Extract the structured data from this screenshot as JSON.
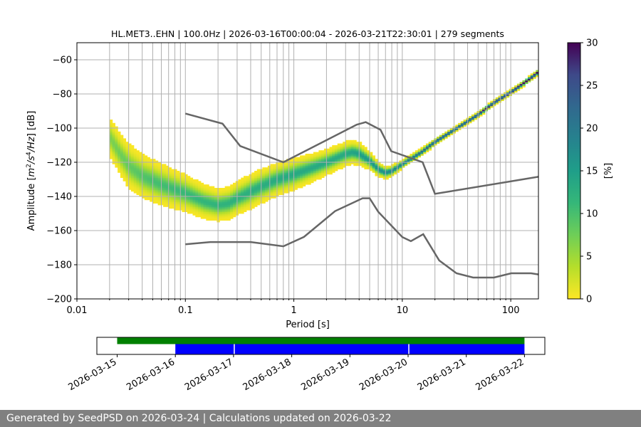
{
  "footer": {
    "text": "Generated by SeedPSD on 2026-03-24 | Calculations updated on 2026-03-22"
  },
  "colors": {
    "nlnm_nhnm": "#666666",
    "grid": "#b0b0b0",
    "timeline_green": "#008000",
    "timeline_blue": "#0000ff",
    "colormap": "viridis_r"
  },
  "chart_data": [
    {
      "type": "heatmap",
      "title": "HL.MET3..EHN | 100.0Hz | 2026-03-16T00:00:04 - 2026-03-21T22:30:01 | 279 segments",
      "xlabel": "Period [s]",
      "ylabel": "Amplitude [m²/s⁴/Hz] [dB]",
      "ylabel_parts": {
        "prefix": "Amplitude [",
        "m": "m",
        "two": "2",
        "s": "/s",
        "four": "4",
        "hz": "/Hz",
        "suffix": "] [dB]"
      },
      "x_scale": "log",
      "xlim": [
        0.01,
        180
      ],
      "ylim": [
        -200,
        -50
      ],
      "x_ticks": [
        0.01,
        0.1,
        1,
        10,
        100
      ],
      "x_tick_labels": [
        "0.01",
        "0.1",
        "1",
        "10",
        "100"
      ],
      "y_ticks": [
        -200,
        -180,
        -160,
        -140,
        -120,
        -100,
        -80,
        -60
      ],
      "y_tick_labels": [
        "−200",
        "−180",
        "−160",
        "−140",
        "−120",
        "−100",
        "−80",
        "−60"
      ],
      "grid": true,
      "colorbar": {
        "label": "[%]",
        "range": [
          0,
          30
        ],
        "ticks": [
          0,
          5,
          10,
          15,
          20,
          25,
          30
        ],
        "tick_labels": [
          "0",
          "5",
          "10",
          "15",
          "20",
          "25",
          "30"
        ]
      },
      "density_model": {
        "mode": [
          [
            0.02,
            -105
          ],
          [
            0.025,
            -115
          ],
          [
            0.03,
            -122
          ],
          [
            0.04,
            -128
          ],
          [
            0.06,
            -133
          ],
          [
            0.1,
            -138
          ],
          [
            0.15,
            -143
          ],
          [
            0.2,
            -145
          ],
          [
            0.25,
            -144
          ],
          [
            0.3,
            -141
          ],
          [
            0.4,
            -137
          ],
          [
            0.5,
            -134
          ],
          [
            0.7,
            -130
          ],
          [
            1.0,
            -127
          ],
          [
            1.5,
            -123
          ],
          [
            2.0,
            -120
          ],
          [
            3.0,
            -115
          ],
          [
            3.5,
            -114
          ],
          [
            4.0,
            -115
          ],
          [
            5.0,
            -119
          ],
          [
            6.0,
            -124
          ],
          [
            7.0,
            -126
          ],
          [
            8.0,
            -125
          ],
          [
            10.0,
            -121
          ],
          [
            15.0,
            -114
          ],
          [
            20.0,
            -108
          ],
          [
            30.0,
            -101
          ],
          [
            50.0,
            -92
          ],
          [
            70.0,
            -85
          ],
          [
            100.0,
            -79
          ],
          [
            150.0,
            -71
          ],
          [
            180.0,
            -67
          ]
        ],
        "spread": [
          [
            0.02,
            14
          ],
          [
            0.03,
            16
          ],
          [
            0.05,
            15
          ],
          [
            0.1,
            13
          ],
          [
            0.2,
            11
          ],
          [
            0.4,
            12
          ],
          [
            1.0,
            11
          ],
          [
            2.0,
            9
          ],
          [
            4.0,
            8
          ],
          [
            6.0,
            5
          ],
          [
            10.0,
            3
          ],
          [
            30.0,
            2
          ],
          [
            180.0,
            2
          ]
        ],
        "peak": [
          [
            0.02,
            6
          ],
          [
            0.05,
            9
          ],
          [
            0.1,
            10
          ],
          [
            0.3,
            11
          ],
          [
            1.0,
            12
          ],
          [
            3.0,
            12
          ],
          [
            6.0,
            15
          ],
          [
            10.0,
            18
          ],
          [
            20.0,
            23
          ],
          [
            50.0,
            27
          ],
          [
            180.0,
            30
          ]
        ]
      },
      "nhnm": [
        [
          0.1,
          -91.5
        ],
        [
          0.22,
          -97.4
        ],
        [
          0.32,
          -110.5
        ],
        [
          0.8,
          -120.0
        ],
        [
          3.8,
          -98.0
        ],
        [
          4.6,
          -96.5
        ],
        [
          6.3,
          -101.0
        ],
        [
          7.9,
          -113.5
        ],
        [
          15.4,
          -120.0
        ],
        [
          20.0,
          -138.5
        ],
        [
          180.0,
          -128.5
        ]
      ],
      "nlnm": [
        [
          0.1,
          -168.0
        ],
        [
          0.17,
          -166.7
        ],
        [
          0.4,
          -166.7
        ],
        [
          0.8,
          -169.2
        ],
        [
          1.24,
          -163.7
        ],
        [
          2.4,
          -148.6
        ],
        [
          4.3,
          -141.1
        ],
        [
          5.0,
          -141.1
        ],
        [
          6.0,
          -149.0
        ],
        [
          10.0,
          -163.8
        ],
        [
          12.0,
          -166.2
        ],
        [
          15.6,
          -162.1
        ],
        [
          21.9,
          -177.5
        ],
        [
          31.6,
          -185.0
        ],
        [
          45.0,
          -187.5
        ],
        [
          70.0,
          -187.5
        ],
        [
          101.0,
          -185.0
        ],
        [
          154.0,
          -185.0
        ],
        [
          180.0,
          -185.7
        ]
      ]
    },
    {
      "type": "timeline",
      "x_labels": [
        "2026-03-15",
        "2026-03-16",
        "2026-03-17",
        "2026-03-18",
        "2026-03-19",
        "2026-03-20",
        "2026-03-21",
        "2026-03-22"
      ],
      "green_bar": {
        "start": "2026-03-15",
        "end": "2026-03-22"
      },
      "blue_bar": {
        "start": "2026-03-16",
        "end": "2026-03-22",
        "gaps": [
          "2026-03-17",
          "2026-03-20"
        ]
      }
    }
  ]
}
